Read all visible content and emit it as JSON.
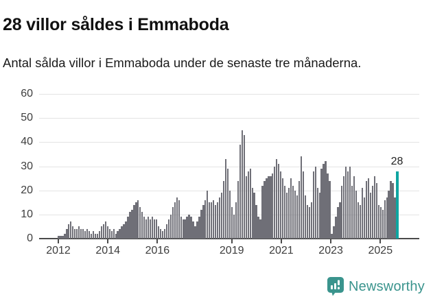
{
  "header": {
    "title": "28 villor såldes i Emmaboda",
    "subtitle": "Antal sålda villor i Emmaboda under de senaste tre månaderna."
  },
  "chart_data": {
    "type": "bar",
    "title": "28 villor såldes i Emmaboda",
    "subtitle": "Antal sålda villor i Emmaboda under de senaste tre månaderna.",
    "frequency": "monthly",
    "x_start": "2012-01",
    "x_end": "2025-11",
    "values": [
      1,
      1,
      1,
      2,
      4,
      6,
      7,
      5,
      4,
      4,
      5,
      4,
      4,
      3,
      4,
      3,
      2,
      3,
      2,
      2,
      3,
      5,
      6,
      7,
      5,
      4,
      3,
      4,
      2,
      3,
      4,
      5,
      6,
      7,
      9,
      11,
      12,
      14,
      15,
      16,
      13,
      11,
      9,
      8,
      9,
      8,
      9,
      8,
      8,
      5,
      4,
      3,
      4,
      6,
      8,
      10,
      13,
      15,
      17,
      16,
      9,
      8,
      8,
      9,
      10,
      9,
      7,
      5,
      7,
      9,
      12,
      14,
      16,
      20,
      15,
      15,
      16,
      14,
      15,
      17,
      19,
      24,
      33,
      29,
      20,
      13,
      10,
      15,
      24,
      39,
      45,
      43,
      26,
      28,
      29,
      21,
      19,
      14,
      9,
      8,
      22,
      24,
      25,
      26,
      26,
      27,
      30,
      33,
      31,
      28,
      25,
      22,
      19,
      21,
      25,
      22,
      20,
      18,
      24,
      34,
      28,
      18,
      14,
      13,
      15,
      28,
      30,
      21,
      19,
      29,
      31,
      32,
      27,
      24,
      2,
      5,
      9,
      13,
      15,
      22,
      26,
      30,
      28,
      30,
      22,
      26,
      20,
      15,
      14,
      21,
      17,
      24,
      25,
      19,
      22,
      26,
      23,
      14,
      13,
      12,
      16,
      17,
      20,
      24,
      23,
      17,
      28
    ],
    "highlight": {
      "index": 166,
      "value": 28,
      "label": "28"
    },
    "ylim": [
      0,
      60
    ],
    "yticks": [
      0,
      10,
      20,
      30,
      40,
      50,
      60
    ],
    "xticks": [
      2012,
      2014,
      2016,
      2019,
      2021,
      2023,
      2025
    ],
    "grid": true,
    "legend": "none",
    "bar_color": "#6f6f77",
    "highlight_color": "#0fa5a1",
    "axis_color": "#4a4a4a",
    "gridline_color": "#e4e4e4",
    "tick_label_color": "#3d3d3d"
  },
  "footer": {
    "brand": "Newsworthy",
    "brand_color": "#3a948d",
    "logo_icon": "bar-chart-speech-bubble-icon"
  }
}
